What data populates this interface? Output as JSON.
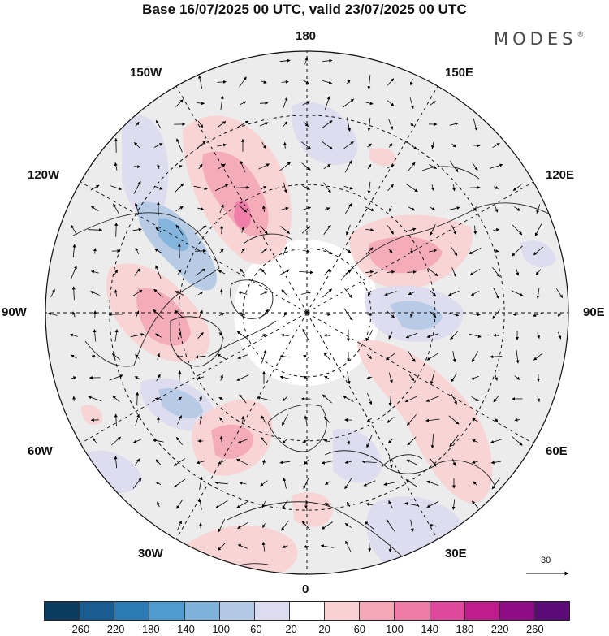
{
  "title": "Base 16/07/2025 00 UTC, valid 23/07/2025 00 UTC",
  "brand": {
    "name": "MODES",
    "mark": "®"
  },
  "projection": "north polar stereographic",
  "longitude_labels": {
    "top": "180",
    "upper_left": "150W",
    "upper_right": "150E",
    "left_upper": "120W",
    "right_upper": "120E",
    "left": "90W",
    "right": "90E",
    "left_lower": "60W",
    "right_lower": "60E",
    "lower_left": "30W",
    "lower_right": "30E",
    "bottom": "0"
  },
  "reference_vector": {
    "value": "30"
  },
  "colorbar": {
    "colors": [
      "#0b3b5e",
      "#1a5c8f",
      "#2a7bb5",
      "#4f9bcf",
      "#7fb2db",
      "#b3c8e4",
      "#dcdcf0",
      "#ffffff",
      "#f9d1d2",
      "#f4a7b6",
      "#ee7aa6",
      "#e0489b",
      "#c01c8c",
      "#8e0d86",
      "#5b0b75"
    ],
    "tick_labels": [
      "-260",
      "-220",
      "-180",
      "-140",
      "-100",
      "-60",
      "-20",
      "20",
      "60",
      "100",
      "140",
      "180",
      "220",
      "260"
    ]
  },
  "field_colors": {
    "neutral": "#ececec",
    "light_pink": "#f9d1d2",
    "pink": "#f4a7b6",
    "magenta": "#ee7aa6",
    "light_blue": "#dcdcf0",
    "blue": "#b3c8e4",
    "mid_blue": "#7fb2db",
    "dark_blue": "#4f9bcf"
  }
}
